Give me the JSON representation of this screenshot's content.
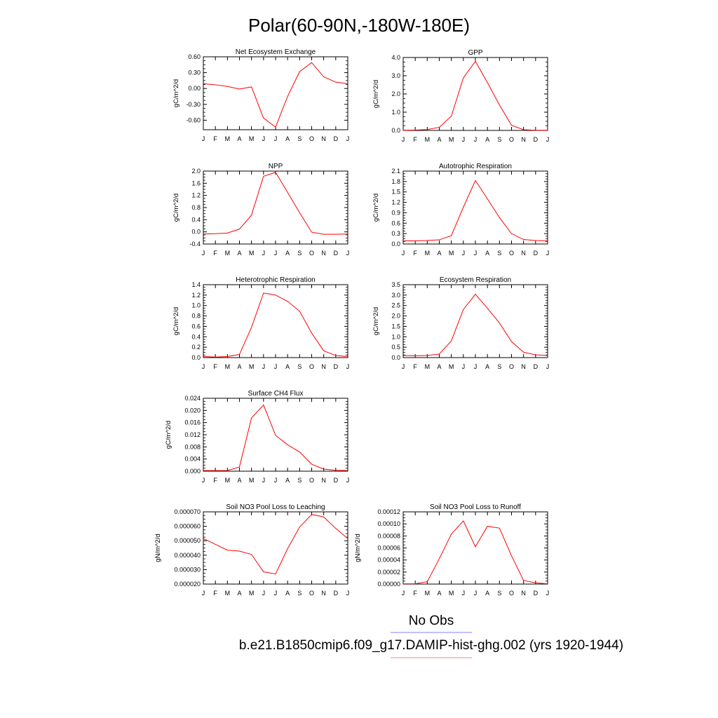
{
  "title": "Polar(60-90N,-180W-180E)",
  "legend": {
    "entries": [
      {
        "label": "No Obs",
        "color": "#0000ff"
      },
      {
        "label": "b.e21.B1850cmip6.f09_g17.DAMIP-hist-ghg.002 (yrs 1920-1944)",
        "color": "#ff0000"
      }
    ]
  },
  "chart_data": [
    {
      "type": "line",
      "title": "Net Ecosystem Exchange",
      "ylabel": "gC/m^2/d",
      "categories": [
        "J",
        "F",
        "M",
        "A",
        "M",
        "J",
        "J",
        "A",
        "S",
        "O",
        "N",
        "D",
        "J"
      ],
      "ylim": [
        -0.78,
        0.6
      ],
      "yticks": [
        0.6,
        0.3,
        0.0,
        -0.3,
        -0.6
      ],
      "ytick_labels": [
        "0.60",
        "0.30",
        "0.00",
        "-0.30",
        "-0.60"
      ],
      "series": [
        {
          "values": [
            0.09,
            0.07,
            0.04,
            -0.01,
            0.03,
            -0.56,
            -0.73,
            -0.15,
            0.32,
            0.49,
            0.22,
            0.12,
            0.09
          ],
          "color": "#ff0000"
        }
      ]
    },
    {
      "type": "line",
      "title": "GPP",
      "ylabel": "gC/m^2/d",
      "categories": [
        "J",
        "F",
        "M",
        "A",
        "M",
        "J",
        "J",
        "A",
        "S",
        "O",
        "N",
        "D",
        "J"
      ],
      "ylim": [
        0,
        4.0
      ],
      "yticks": [
        4.0,
        3.0,
        2.0,
        1.0,
        0.0
      ],
      "ytick_labels": [
        "4.0",
        "3.0",
        "2.0",
        "1.0",
        "0.0"
      ],
      "series": [
        {
          "values": [
            0.01,
            0.02,
            0.05,
            0.17,
            0.78,
            2.88,
            3.79,
            2.62,
            1.4,
            0.28,
            0.04,
            0.01,
            0.01
          ],
          "color": "#ff0000"
        }
      ]
    },
    {
      "type": "line",
      "title": "NPP",
      "ylabel": "gC/m^2/d",
      "categories": [
        "J",
        "F",
        "M",
        "A",
        "M",
        "J",
        "J",
        "A",
        "S",
        "O",
        "N",
        "D",
        "J"
      ],
      "ylim": [
        -0.4,
        2.0
      ],
      "yticks": [
        2.0,
        1.6,
        1.2,
        0.8,
        0.4,
        0.0,
        -0.4
      ],
      "ytick_labels": [
        "2.0",
        "1.6",
        "1.2",
        "0.8",
        "0.4",
        "0.0",
        "-0.4"
      ],
      "series": [
        {
          "values": [
            -0.07,
            -0.06,
            -0.04,
            0.09,
            0.55,
            1.83,
            1.96,
            1.3,
            0.63,
            -0.01,
            -0.08,
            -0.08,
            -0.07
          ],
          "color": "#ff0000"
        }
      ]
    },
    {
      "type": "line",
      "title": "Autotrophic Respiration",
      "ylabel": "gC/m^2/d",
      "categories": [
        "J",
        "F",
        "M",
        "A",
        "M",
        "J",
        "J",
        "A",
        "S",
        "O",
        "N",
        "D",
        "J"
      ],
      "ylim": [
        0,
        2.1
      ],
      "yticks": [
        2.1,
        1.8,
        1.5,
        1.2,
        0.9,
        0.6,
        0.3,
        0.0
      ],
      "ytick_labels": [
        "2.1",
        "1.8",
        "1.5",
        "1.2",
        "0.9",
        "0.6",
        "0.3",
        "0.0"
      ],
      "series": [
        {
          "values": [
            0.09,
            0.09,
            0.1,
            0.12,
            0.24,
            1.06,
            1.83,
            1.3,
            0.76,
            0.3,
            0.13,
            0.1,
            0.09
          ],
          "color": "#ff0000"
        }
      ]
    },
    {
      "type": "line",
      "title": "Heterotrophic Respiration",
      "ylabel": "gC/m^2/d",
      "categories": [
        "J",
        "F",
        "M",
        "A",
        "M",
        "J",
        "J",
        "A",
        "S",
        "O",
        "N",
        "D",
        "J"
      ],
      "ylim": [
        0,
        1.4
      ],
      "yticks": [
        1.4,
        1.2,
        1.0,
        0.8,
        0.6,
        0.4,
        0.2,
        0.0
      ],
      "ytick_labels": [
        "1.4",
        "1.2",
        "1.0",
        "0.8",
        "0.6",
        "0.4",
        "0.2",
        "0.0"
      ],
      "series": [
        {
          "values": [
            0.02,
            0.01,
            0.02,
            0.06,
            0.58,
            1.24,
            1.2,
            1.08,
            0.89,
            0.47,
            0.13,
            0.04,
            0.02
          ],
          "color": "#ff0000"
        }
      ]
    },
    {
      "type": "line",
      "title": "Ecosystem Respiration",
      "ylabel": "gC/m^2/d",
      "categories": [
        "J",
        "F",
        "M",
        "A",
        "M",
        "J",
        "J",
        "A",
        "S",
        "O",
        "N",
        "D",
        "J"
      ],
      "ylim": [
        0,
        3.5
      ],
      "yticks": [
        3.5,
        3.0,
        2.5,
        2.0,
        1.5,
        1.0,
        0.5,
        0.0
      ],
      "ytick_labels": [
        "3.5",
        "3.0",
        "2.5",
        "2.0",
        "1.5",
        "1.0",
        "0.5",
        "0.0"
      ],
      "series": [
        {
          "values": [
            0.1,
            0.09,
            0.1,
            0.17,
            0.8,
            2.31,
            3.04,
            2.37,
            1.66,
            0.77,
            0.26,
            0.13,
            0.1
          ],
          "color": "#ff0000"
        }
      ]
    },
    {
      "type": "line",
      "title": "Surface CH4 Flux",
      "ylabel": "gC/m^2/d",
      "categories": [
        "J",
        "F",
        "M",
        "A",
        "M",
        "J",
        "J",
        "A",
        "S",
        "O",
        "N",
        "D",
        "J"
      ],
      "ylim": [
        0,
        0.024
      ],
      "yticks": [
        0.024,
        0.02,
        0.016,
        0.012,
        0.008,
        0.004,
        0.0
      ],
      "ytick_labels": [
        "0.024",
        "0.020",
        "0.016",
        "0.012",
        "0.008",
        "0.004",
        "0.000"
      ],
      "series": [
        {
          "values": [
            0.0002,
            0.0002,
            0.0002,
            0.0014,
            0.0175,
            0.0218,
            0.0118,
            0.0087,
            0.0063,
            0.0023,
            0.0007,
            0.0003,
            0.0002
          ],
          "color": "#ff0000"
        }
      ]
    },
    {
      "type": "line",
      "title": "Soil NO3 Pool Loss to Leaching",
      "ylabel": "gN/m^2/d",
      "categories": [
        "J",
        "F",
        "M",
        "A",
        "M",
        "J",
        "J",
        "A",
        "S",
        "O",
        "N",
        "D",
        "J"
      ],
      "ylim": [
        2e-05,
        7e-05
      ],
      "yticks": [
        7e-05,
        6e-05,
        5e-05,
        4e-05,
        3e-05,
        2e-05
      ],
      "ytick_labels": [
        "0.000070",
        "0.000060",
        "0.000050",
        "0.000040",
        "0.000030",
        "0.000020"
      ],
      "series": [
        {
          "values": [
            5.15e-05,
            4.75e-05,
            4.35e-05,
            4.28e-05,
            4.05e-05,
            2.85e-05,
            2.7e-05,
            4.45e-05,
            5.95e-05,
            6.82e-05,
            6.65e-05,
            5.85e-05,
            5.15e-05
          ],
          "color": "#ff0000"
        }
      ]
    },
    {
      "type": "line",
      "title": "Soil NO3 Pool Loss to Runoff",
      "ylabel": "gN/m^2/d",
      "categories": [
        "J",
        "F",
        "M",
        "A",
        "M",
        "J",
        "J",
        "A",
        "S",
        "O",
        "N",
        "D",
        "J"
      ],
      "ylim": [
        0,
        0.00012
      ],
      "yticks": [
        0.00012,
        0.0001,
        8e-05,
        6e-05,
        4e-05,
        2e-05,
        0.0
      ],
      "ytick_labels": [
        "0.00012",
        "0.00010",
        "0.00008",
        "0.00006",
        "0.00004",
        "0.00002",
        "0.00000"
      ],
      "series": [
        {
          "values": [
            5e-07,
            5e-07,
            4e-06,
            4.2e-05,
            8.3e-05,
            0.000105,
            6.2e-05,
            9.6e-05,
            9.3e-05,
            4.7e-05,
            6e-06,
            2e-06,
            5e-07
          ],
          "color": "#ff0000"
        }
      ]
    }
  ]
}
